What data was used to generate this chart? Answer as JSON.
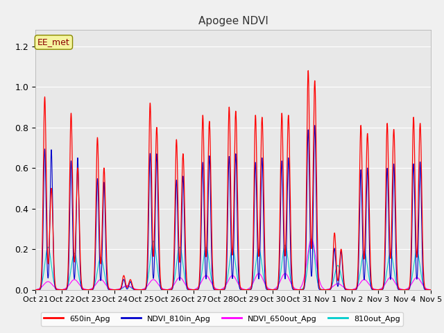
{
  "title": "Apogee NDVI",
  "annotation": "EE_met",
  "fig_facecolor": "#f0f0f0",
  "plot_bg_color": "#e8e8e8",
  "plot_bg_upper": "#d8d8d8",
  "colors": {
    "650in_Apg": "#ff0000",
    "NDVI_810in_Apg": "#0000cc",
    "NDVI_650out_Apg": "#ff00ff",
    "810out_Apg": "#00cccc"
  },
  "ylim": [
    0.0,
    1.28
  ],
  "yticks": [
    0.0,
    0.2,
    0.4,
    0.6,
    0.8,
    1.0,
    1.2
  ],
  "tick_labels": [
    "Oct 21",
    "Oct 22",
    "Oct 23",
    "Oct 24",
    "Oct 25",
    "Oct 26",
    "Oct 27",
    "Oct 28",
    "Oct 29",
    "Oct 30",
    "Oct 31",
    "Nov 1",
    "Nov 2",
    "Nov 3",
    "Nov 4",
    "Nov 5"
  ],
  "day_peaks": [
    [
      0.95,
      0.5,
      0.69,
      0.04,
      0.21
    ],
    [
      0.87,
      0.6,
      0.65,
      0.05,
      0.18
    ],
    [
      0.75,
      0.6,
      0.53,
      0.05,
      0.16
    ],
    [
      0.07,
      0.05,
      0.04,
      0.02,
      0.02
    ],
    [
      0.92,
      0.8,
      0.67,
      0.05,
      0.24
    ],
    [
      0.74,
      0.67,
      0.56,
      0.06,
      0.21
    ],
    [
      0.86,
      0.83,
      0.66,
      0.07,
      0.21
    ],
    [
      0.9,
      0.88,
      0.67,
      0.07,
      0.2
    ],
    [
      0.86,
      0.85,
      0.65,
      0.08,
      0.2
    ],
    [
      0.87,
      0.86,
      0.65,
      0.08,
      0.22
    ],
    [
      1.08,
      1.03,
      0.81,
      0.25,
      0.25
    ],
    [
      0.28,
      0.2,
      0.19,
      0.03,
      0.12
    ],
    [
      0.81,
      0.77,
      0.6,
      0.05,
      0.19
    ],
    [
      0.82,
      0.79,
      0.62,
      0.06,
      0.18
    ],
    [
      0.85,
      0.82,
      0.63,
      0.06,
      0.19
    ]
  ],
  "legend_labels": [
    "650in_Apg",
    "NDVI_810in_Apg",
    "NDVI_650out_Apg",
    "810out_Apg"
  ]
}
